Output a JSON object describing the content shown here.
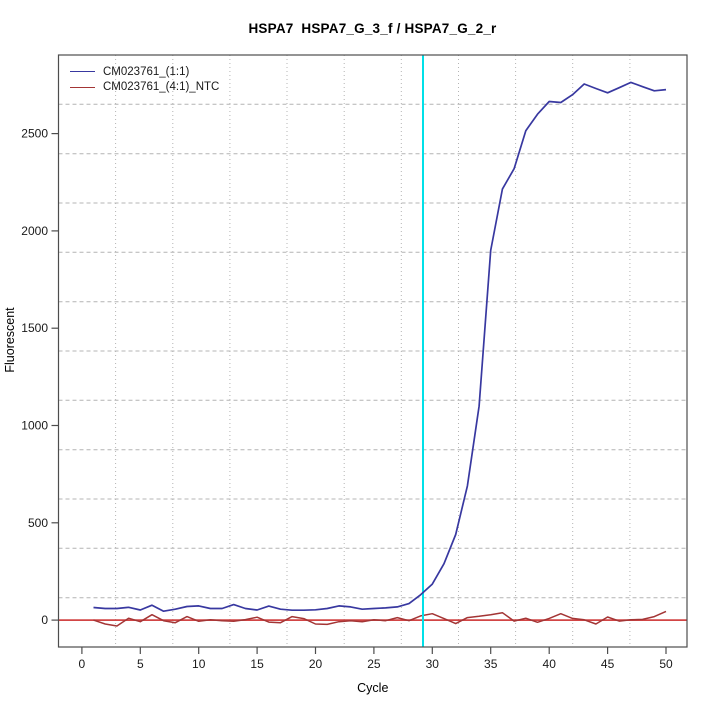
{
  "chart_data": {
    "type": "line",
    "title": "HSPA7  HSPA7_G_3_f / HSPA7_G_2_r",
    "xlabel": "Cycle",
    "ylabel": "Fluorescent",
    "x_ticks": [
      0,
      5,
      10,
      15,
      20,
      25,
      30,
      35,
      40,
      45,
      50
    ],
    "y_ticks": [
      0,
      500,
      1000,
      1500,
      2000,
      2500
    ],
    "xlim": [
      -2.0,
      51.8
    ],
    "ylim": [
      -138,
      2904
    ],
    "grid": {
      "vertical_divisions": 11,
      "horizontal_divisions": 12,
      "color": "#b4b4b4"
    },
    "threshold_line": {
      "x": 29.2,
      "color": "#00e0e8"
    },
    "zero_line": {
      "y": 0,
      "color": "#d24545"
    },
    "axis_color": "#4d4d4d",
    "text_color": "#1a1a1a",
    "x": [
      1,
      2,
      3,
      4,
      5,
      6,
      7,
      8,
      9,
      10,
      11,
      12,
      13,
      14,
      15,
      16,
      17,
      18,
      19,
      20,
      21,
      22,
      23,
      24,
      25,
      26,
      27,
      28,
      29,
      30,
      31,
      32,
      33,
      34,
      35,
      36,
      37,
      38,
      39,
      40,
      41,
      42,
      43,
      44,
      45,
      46,
      47,
      48,
      49,
      50
    ],
    "series": [
      {
        "name": "CM023761_(1:1)",
        "color": "#3838a0",
        "values": [
          65,
          60,
          60,
          66,
          52,
          77,
          46,
          56,
          70,
          73,
          60,
          60,
          80,
          60,
          52,
          72,
          56,
          51,
          51,
          53,
          60,
          73,
          68,
          56,
          60,
          63,
          68,
          85,
          130,
          185,
          290,
          440,
          690,
          1100,
          1900,
          2215,
          2320,
          2515,
          2600,
          2665,
          2660,
          2700,
          2755,
          2732,
          2710,
          2736,
          2763,
          2741,
          2720,
          2726
        ]
      },
      {
        "name": "CM023761_(4:1)_NTC",
        "color": "#a33535",
        "values": [
          0,
          -20,
          -30,
          10,
          -8,
          28,
          -3,
          -13,
          18,
          -6,
          2,
          -3,
          -6,
          3,
          15,
          -10,
          -13,
          18,
          8,
          -20,
          -22,
          -8,
          -3,
          -8,
          2,
          -3,
          13,
          -3,
          22,
          33,
          8,
          -18,
          13,
          20,
          28,
          38,
          -5,
          10,
          -11,
          9,
          33,
          9,
          2,
          -20,
          16,
          -5,
          2,
          4,
          18,
          45
        ]
      }
    ]
  }
}
